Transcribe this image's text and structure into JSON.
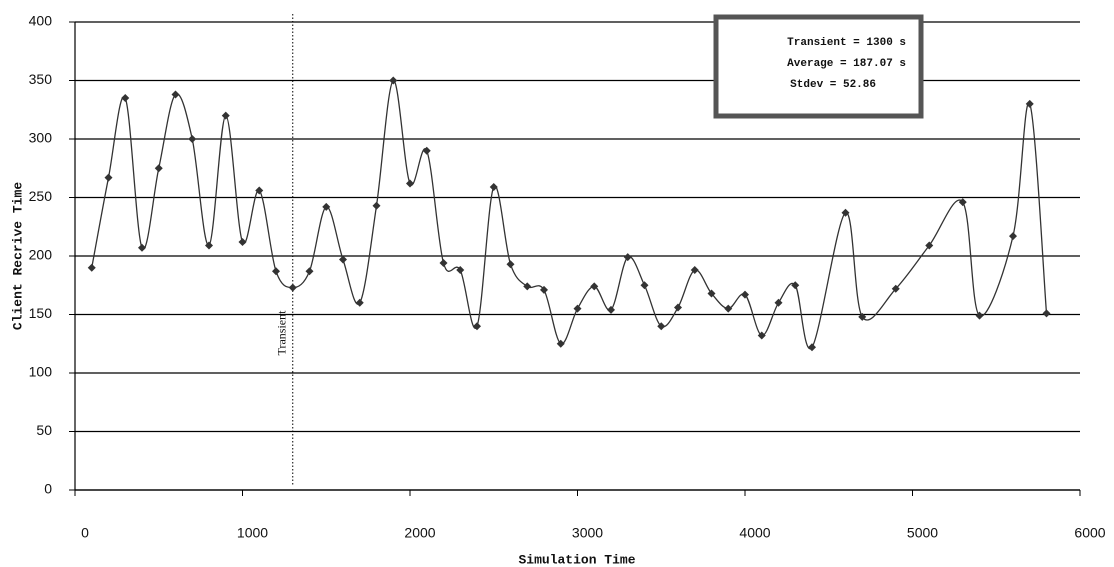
{
  "chart_data": {
    "type": "line",
    "xlabel": "Simulation Time",
    "ylabel": "Client Recrive Time",
    "x": [
      100,
      200,
      300,
      400,
      500,
      600,
      700,
      800,
      900,
      1000,
      1100,
      1200,
      1300,
      1400,
      1500,
      1600,
      1700,
      1800,
      1900,
      2000,
      2100,
      2200,
      2300,
      2400,
      2500,
      2600,
      2700,
      2800,
      2900,
      3000,
      3100,
      3200,
      3300,
      3400,
      3500,
      3600,
      3700,
      3800,
      3900,
      4000,
      4100,
      4200,
      4300,
      4400,
      4600,
      4700,
      4900,
      5100,
      5300,
      5400,
      5600,
      5700,
      5800
    ],
    "series": [
      {
        "color": "#333333",
        "values": [
          190,
          267,
          335,
          207,
          275,
          338,
          300,
          209,
          320,
          212,
          256,
          187,
          173,
          187,
          242,
          197,
          160,
          243,
          350,
          262,
          290,
          194,
          188,
          140,
          259,
          193,
          174,
          171,
          125,
          155,
          174,
          154,
          199,
          175,
          140,
          156,
          188,
          168,
          155,
          167,
          132,
          160,
          175,
          122,
          237,
          148,
          172,
          209,
          246,
          149,
          217,
          330,
          151
        ]
      }
    ],
    "xlim": [
      0,
      6000
    ],
    "xticks": [
      0,
      1000,
      2000,
      3000,
      4000,
      5000,
      6000
    ],
    "ylim": [
      0,
      400
    ],
    "yticks": [
      0,
      50,
      100,
      150,
      200,
      250,
      300,
      350,
      400
    ],
    "grid": true,
    "vline": {
      "x": 1300,
      "label": "Transient"
    },
    "annotation": [
      "Transient = 1300 s",
      "Average = 187.07 s",
      "Stdev = 52.86"
    ]
  }
}
